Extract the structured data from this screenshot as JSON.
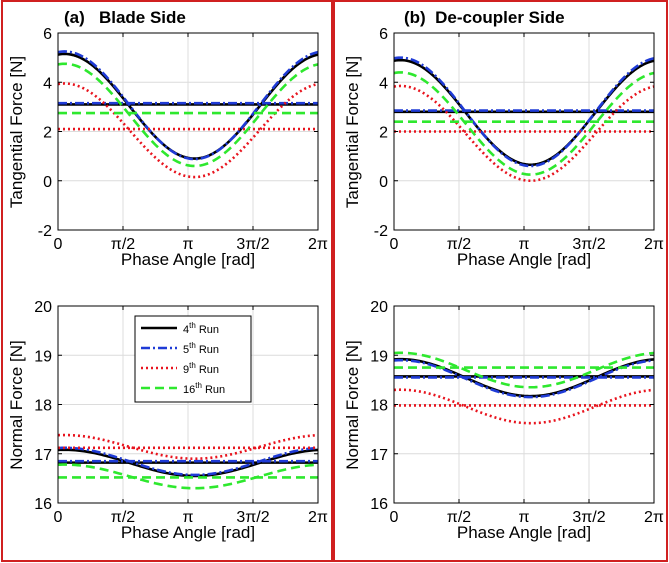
{
  "colors": {
    "run4": "#000000",
    "run5": "#1f3bd6",
    "run9": "#e8141e",
    "run16": "#2ee82e",
    "panel_border": "#d02020",
    "grid": "#dcdcdc"
  },
  "legend": {
    "placement": "upper-center (panel c)",
    "entries": [
      {
        "series": "4th Run",
        "num": "4",
        "sup": "th",
        "rest": " Run",
        "style": "solid"
      },
      {
        "series": "5th Run",
        "num": "5",
        "sup": "th",
        "rest": " Run",
        "style": "dashdot"
      },
      {
        "series": "9th Run",
        "num": "9",
        "sup": "th",
        "rest": " Run",
        "style": "dotted"
      },
      {
        "series": "16th Run",
        "num": "16",
        "sup": "th",
        "rest": " Run",
        "style": "dashed"
      }
    ]
  },
  "chart_data": [
    {
      "type": "line",
      "panel": "a",
      "title": "(a)   Blade Side",
      "xlabel": "Phase Angle [rad]",
      "ylabel": "Tangential Force [N]",
      "xlim": [
        0,
        6.2832
      ],
      "ylim": [
        -2,
        6
      ],
      "xticks": [
        "0",
        "π/2",
        "π",
        "3π/2",
        "2π"
      ],
      "yticks": [
        "-2",
        "0",
        "2",
        "4",
        "6"
      ],
      "grid": true,
      "x_unit": "rad",
      "series": [
        {
          "name": "4th Run",
          "mean": 3.1,
          "sine_max": 5.15,
          "sine_min": 0.9,
          "min_at": 3.3
        },
        {
          "name": "5th Run",
          "mean": 3.15,
          "sine_max": 5.25,
          "sine_min": 0.88,
          "min_at": 3.3
        },
        {
          "name": "9th Run",
          "mean": 2.1,
          "sine_max": 3.95,
          "sine_min": 0.15,
          "min_at": 3.3
        },
        {
          "name": "16th Run",
          "mean": 2.75,
          "sine_max": 4.75,
          "sine_min": 0.6,
          "min_at": 3.3
        }
      ]
    },
    {
      "type": "line",
      "panel": "b",
      "title": "(b)  De-coupler Side",
      "xlabel": "Phase Angle [rad]",
      "ylabel": "Tangential Force [N]",
      "xlim": [
        0,
        6.2832
      ],
      "ylim": [
        -2,
        6
      ],
      "xticks": [
        "0",
        "π/2",
        "π",
        "3π/2",
        "2π"
      ],
      "yticks": [
        "-2",
        "0",
        "2",
        "4",
        "6"
      ],
      "grid": true,
      "x_unit": "rad",
      "series": [
        {
          "name": "4th Run",
          "mean": 2.8,
          "sine_max": 4.9,
          "sine_min": 0.65,
          "min_at": 3.3
        },
        {
          "name": "5th Run",
          "mean": 2.85,
          "sine_max": 5.0,
          "sine_min": 0.6,
          "min_at": 3.3
        },
        {
          "name": "9th Run",
          "mean": 2.0,
          "sine_max": 3.85,
          "sine_min": 0.0,
          "min_at": 3.3
        },
        {
          "name": "16th Run",
          "mean": 2.4,
          "sine_max": 4.4,
          "sine_min": 0.25,
          "min_at": 3.3
        }
      ]
    },
    {
      "type": "line",
      "panel": "c",
      "title": "",
      "xlabel": "Phase Angle [rad]",
      "ylabel": "Normal Force [N]",
      "xlim": [
        0,
        6.2832
      ],
      "ylim": [
        16,
        20
      ],
      "xticks": [
        "0",
        "π/2",
        "π",
        "3π/2",
        "2π"
      ],
      "yticks": [
        "16",
        "17",
        "18",
        "19",
        "20"
      ],
      "grid": true,
      "x_unit": "rad",
      "series": [
        {
          "name": "4th Run",
          "mean": 16.82,
          "sine_max": 17.08,
          "sine_min": 16.55,
          "min_at": 3.3
        },
        {
          "name": "5th Run",
          "mean": 16.85,
          "sine_max": 17.12,
          "sine_min": 16.57,
          "min_at": 3.3
        },
        {
          "name": "9th Run",
          "mean": 17.12,
          "sine_max": 17.38,
          "sine_min": 16.9,
          "min_at": 3.3
        },
        {
          "name": "16th Run",
          "mean": 16.52,
          "sine_max": 16.78,
          "sine_min": 16.3,
          "min_at": 3.3
        }
      ]
    },
    {
      "type": "line",
      "panel": "d",
      "title": "",
      "xlabel": "Phase Angle [rad]",
      "ylabel": "Normal Force [N]",
      "xlim": [
        0,
        6.2832
      ],
      "ylim": [
        16,
        20
      ],
      "xticks": [
        "0",
        "π/2",
        "π",
        "3π/2",
        "2π"
      ],
      "yticks": [
        "16",
        "17",
        "18",
        "19",
        "20"
      ],
      "grid": true,
      "x_unit": "rad",
      "series": [
        {
          "name": "4th Run",
          "mean": 18.57,
          "sine_max": 18.92,
          "sine_min": 18.17,
          "min_at": 3.3
        },
        {
          "name": "5th Run",
          "mean": 18.55,
          "sine_max": 18.9,
          "sine_min": 18.15,
          "min_at": 3.3
        },
        {
          "name": "9th Run",
          "mean": 17.98,
          "sine_max": 18.3,
          "sine_min": 17.62,
          "min_at": 3.3
        },
        {
          "name": "16th Run",
          "mean": 18.75,
          "sine_max": 19.05,
          "sine_min": 18.35,
          "min_at": 3.3
        }
      ]
    }
  ]
}
